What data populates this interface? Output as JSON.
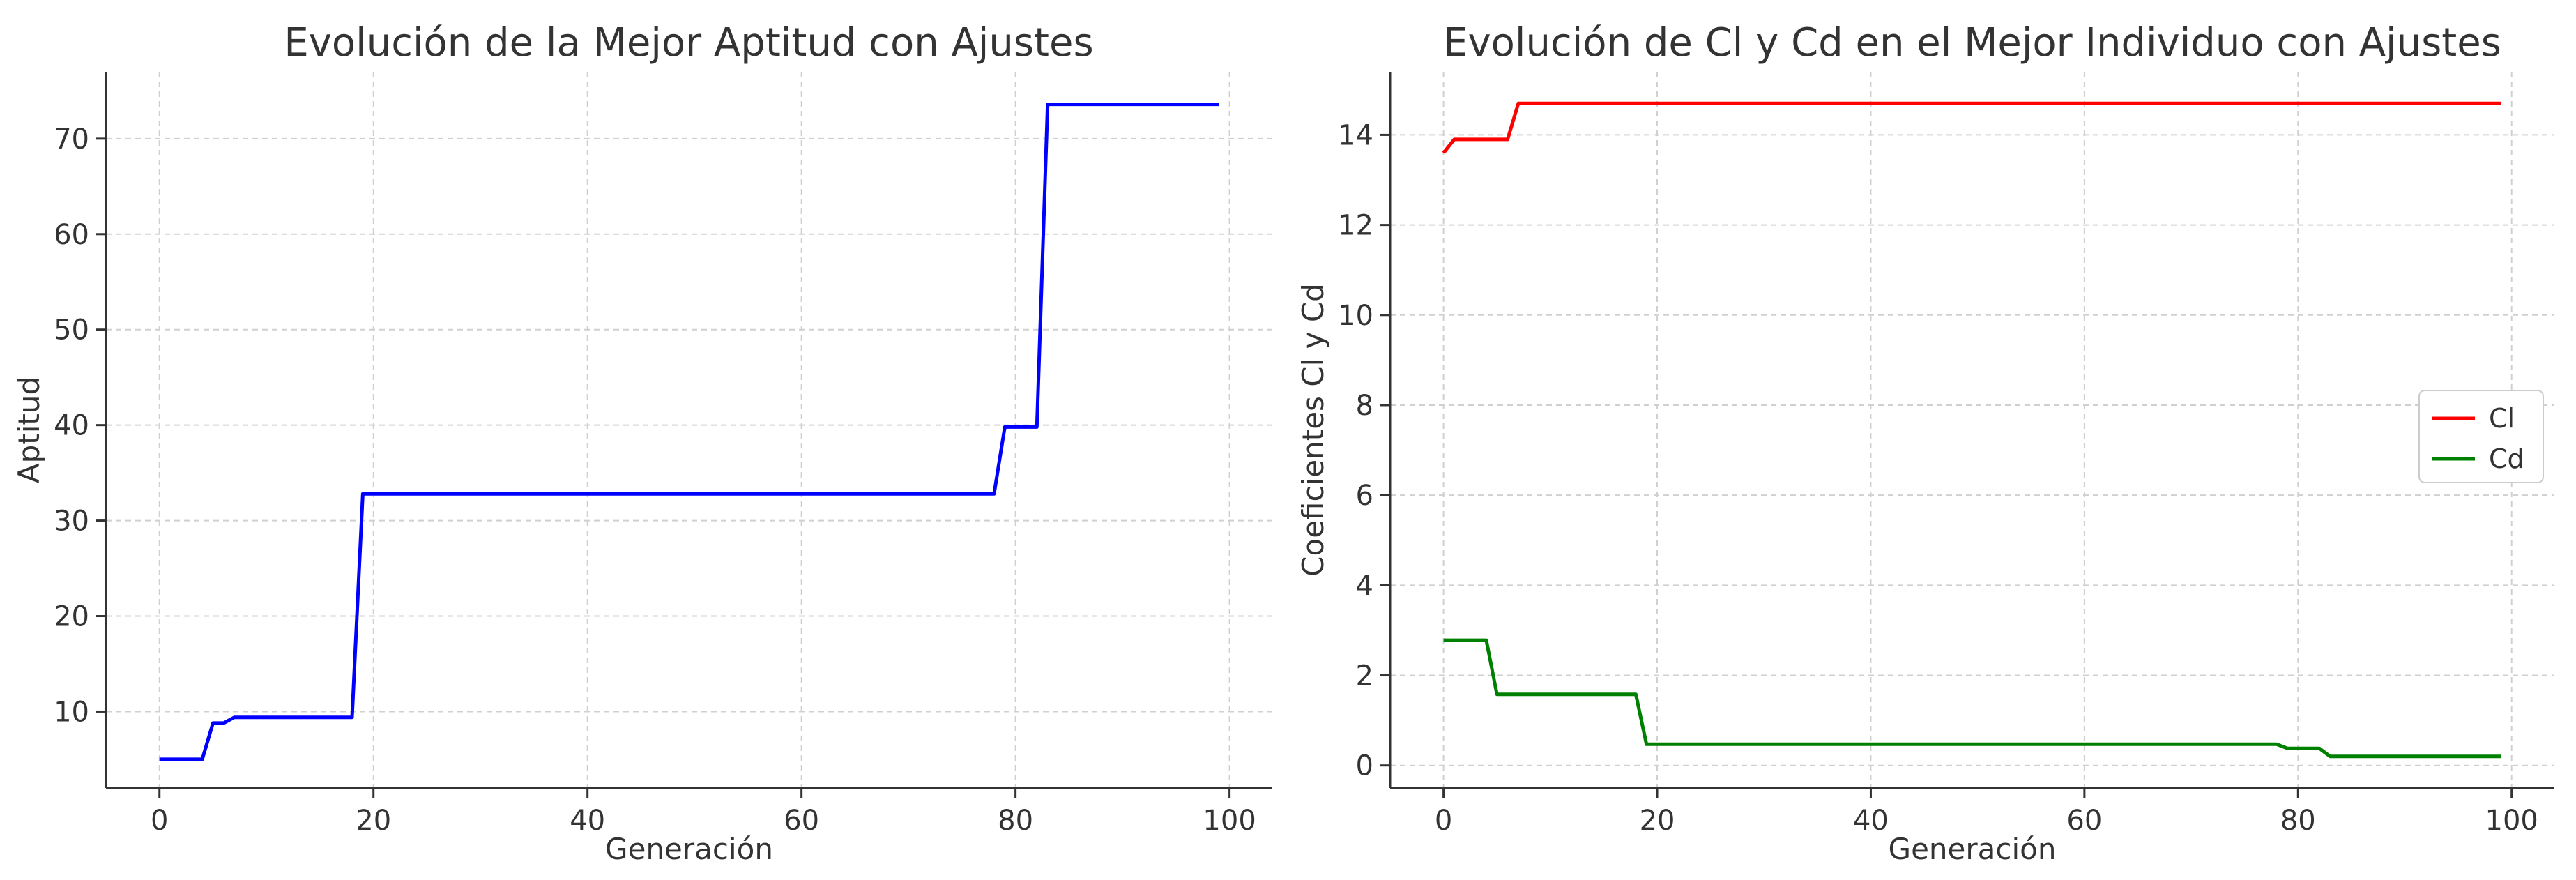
{
  "chart_data": [
    {
      "type": "line",
      "title": "Evolución de la Mejor Aptitud con Ajustes",
      "xlabel": "Generación",
      "ylabel": "Aptitud",
      "xlim": [
        -5,
        104
      ],
      "ylim": [
        2,
        77
      ],
      "xticks": [
        0,
        20,
        40,
        60,
        80,
        100
      ],
      "yticks": [
        10,
        20,
        30,
        40,
        50,
        60,
        70
      ],
      "grid": true,
      "series": [
        {
          "color": "#0000ff",
          "points": [
            [
              0,
              5.0
            ],
            [
              4,
              5.0
            ],
            [
              5,
              8.8
            ],
            [
              6,
              8.8
            ],
            [
              7,
              9.4
            ],
            [
              18,
              9.4
            ],
            [
              19,
              32.8
            ],
            [
              78,
              32.8
            ],
            [
              79,
              39.8
            ],
            [
              82,
              39.8
            ],
            [
              83,
              73.6
            ],
            [
              99,
              73.6
            ]
          ]
        }
      ]
    },
    {
      "type": "line",
      "title": "Evolución de Cl y Cd en el Mejor Individuo con Ajustes",
      "xlabel": "Generación",
      "ylabel": "Coeficientes Cl y Cd",
      "xlim": [
        -5,
        104
      ],
      "ylim": [
        -0.5,
        15.4
      ],
      "xticks": [
        0,
        20,
        40,
        60,
        80,
        100
      ],
      "yticks": [
        0,
        2,
        4,
        6,
        8,
        10,
        12,
        14
      ],
      "grid": true,
      "legend": "center-right",
      "series": [
        {
          "name": "Cl",
          "color": "#ff0000",
          "points": [
            [
              0,
              13.6
            ],
            [
              1,
              13.9
            ],
            [
              6,
              13.9
            ],
            [
              7,
              14.7
            ],
            [
              99,
              14.7
            ]
          ]
        },
        {
          "name": "Cd",
          "color": "#008000",
          "points": [
            [
              0,
              2.78
            ],
            [
              4,
              2.78
            ],
            [
              5,
              1.58
            ],
            [
              18,
              1.58
            ],
            [
              19,
              0.47
            ],
            [
              78,
              0.47
            ],
            [
              79,
              0.38
            ],
            [
              82,
              0.38
            ],
            [
              83,
              0.2
            ],
            [
              99,
              0.2
            ]
          ]
        }
      ]
    }
  ]
}
